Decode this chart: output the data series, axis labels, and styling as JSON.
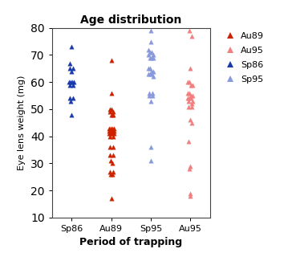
{
  "title": "Age distribution",
  "xlabel": "Period of trapping",
  "ylabel": "Eye lens weight (mg)",
  "ylim": [
    10,
    80
  ],
  "xlim": [
    -0.5,
    3.5
  ],
  "xtick_labels": [
    "Sp86",
    "Au89",
    "Sp95",
    "Au95"
  ],
  "xtick_positions": [
    0,
    1,
    2,
    3
  ],
  "background_color": "#ffffff",
  "legend_labels": [
    "Au89",
    "Au95",
    "Sp86",
    "Sp95"
  ],
  "legend_colors": [
    "#cc2200",
    "#f08080",
    "#1a3aaa",
    "#8899dd"
  ],
  "series": [
    {
      "label": "Sp86",
      "x_pos": 0,
      "color": "#1a3aaa",
      "points": [
        [
          0.0,
          73
        ],
        [
          -0.04,
          67
        ],
        [
          0.04,
          65
        ],
        [
          -0.04,
          65
        ],
        [
          0.0,
          64
        ],
        [
          -0.06,
          60
        ],
        [
          -0.02,
          60
        ],
        [
          0.02,
          60
        ],
        [
          0.06,
          60
        ],
        [
          -0.04,
          59
        ],
        [
          0.04,
          59
        ],
        [
          -0.04,
          54
        ],
        [
          0.04,
          54
        ],
        [
          -0.02,
          53
        ],
        [
          0.0,
          48
        ]
      ]
    },
    {
      "label": "Au89",
      "x_pos": 1,
      "color": "#cc2200",
      "points": [
        [
          0.0,
          68
        ],
        [
          0.0,
          56
        ],
        [
          -0.04,
          50
        ],
        [
          0.0,
          50
        ],
        [
          0.04,
          49
        ],
        [
          -0.04,
          49
        ],
        [
          0.0,
          48
        ],
        [
          0.04,
          48
        ],
        [
          -0.06,
          43
        ],
        [
          -0.02,
          43
        ],
        [
          0.02,
          43
        ],
        [
          0.06,
          43
        ],
        [
          -0.06,
          42
        ],
        [
          -0.02,
          42
        ],
        [
          0.02,
          42
        ],
        [
          0.06,
          42
        ],
        [
          -0.06,
          41
        ],
        [
          -0.02,
          41
        ],
        [
          0.02,
          41
        ],
        [
          0.06,
          41
        ],
        [
          -0.04,
          40
        ],
        [
          0.04,
          40
        ],
        [
          -0.04,
          36
        ],
        [
          0.04,
          36
        ],
        [
          -0.04,
          33
        ],
        [
          0.04,
          33
        ],
        [
          -0.02,
          31
        ],
        [
          0.02,
          30
        ],
        [
          -0.04,
          27
        ],
        [
          0.04,
          27
        ],
        [
          -0.02,
          26
        ],
        [
          0.02,
          26
        ],
        [
          0.0,
          17
        ]
      ]
    },
    {
      "label": "Sp95",
      "x_pos": 2,
      "color": "#8899dd",
      "points": [
        [
          0.0,
          79
        ],
        [
          0.0,
          75
        ],
        [
          -0.06,
          72
        ],
        [
          -0.02,
          71
        ],
        [
          0.02,
          71
        ],
        [
          0.06,
          70
        ],
        [
          -0.06,
          70
        ],
        [
          -0.02,
          69
        ],
        [
          0.02,
          69
        ],
        [
          0.06,
          69
        ],
        [
          -0.06,
          65
        ],
        [
          -0.02,
          65
        ],
        [
          0.02,
          64
        ],
        [
          0.06,
          64
        ],
        [
          -0.06,
          63
        ],
        [
          -0.02,
          63
        ],
        [
          0.02,
          63
        ],
        [
          0.06,
          62
        ],
        [
          -0.04,
          56
        ],
        [
          0.04,
          56
        ],
        [
          -0.04,
          55
        ],
        [
          0.04,
          55
        ],
        [
          0.0,
          53
        ],
        [
          0.0,
          36
        ],
        [
          0.0,
          31
        ]
      ]
    },
    {
      "label": "Au95",
      "x_pos": 3,
      "color": "#f08080",
      "points": [
        [
          -0.02,
          79
        ],
        [
          0.04,
          77
        ],
        [
          0.0,
          65
        ],
        [
          -0.06,
          60
        ],
        [
          -0.02,
          60
        ],
        [
          0.02,
          59
        ],
        [
          0.06,
          59
        ],
        [
          -0.06,
          56
        ],
        [
          -0.02,
          56
        ],
        [
          0.02,
          55
        ],
        [
          0.06,
          55
        ],
        [
          -0.06,
          54
        ],
        [
          -0.02,
          54
        ],
        [
          0.02,
          54
        ],
        [
          0.06,
          53
        ],
        [
          -0.04,
          53
        ],
        [
          0.04,
          52
        ],
        [
          -0.04,
          51
        ],
        [
          0.04,
          51
        ],
        [
          0.0,
          46
        ],
        [
          0.04,
          45
        ],
        [
          -0.04,
          38
        ],
        [
          0.0,
          29
        ],
        [
          -0.02,
          28
        ],
        [
          0.0,
          19
        ],
        [
          0.0,
          18
        ]
      ]
    }
  ]
}
